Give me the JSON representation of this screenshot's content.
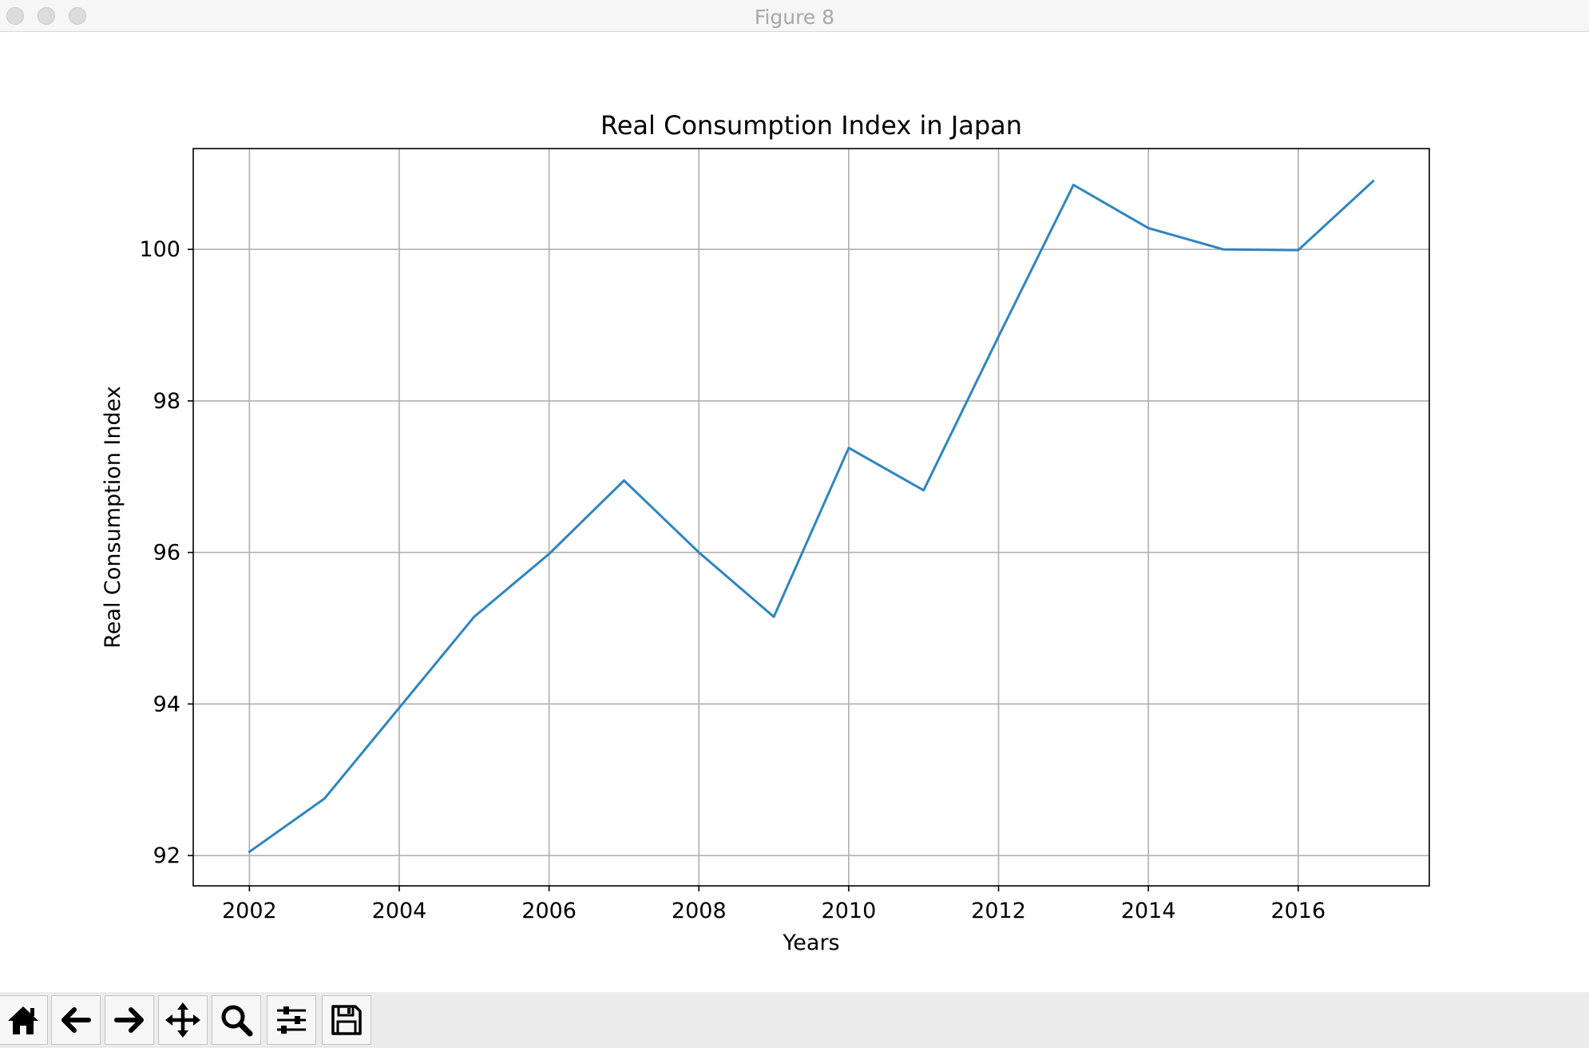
{
  "window": {
    "title": "Figure 8"
  },
  "toolbar": {
    "buttons": [
      {
        "name": "home-button",
        "icon": "home-icon"
      },
      {
        "name": "back-button",
        "icon": "arrow-left-icon"
      },
      {
        "name": "forward-button",
        "icon": "arrow-right-icon"
      },
      {
        "name": "pan-button",
        "icon": "move-icon"
      },
      {
        "name": "zoom-button",
        "icon": "search-icon"
      },
      {
        "name": "configure-subplots-button",
        "icon": "sliders-icon"
      },
      {
        "name": "save-button",
        "icon": "floppy-disk-icon"
      }
    ]
  },
  "chart_data": {
    "type": "line",
    "title": "Real Consumption Index in Japan",
    "xlabel": "Years",
    "ylabel": "Real Consumption Index",
    "x": [
      2002,
      2003,
      2004,
      2005,
      2006,
      2007,
      2008,
      2009,
      2010,
      2011,
      2012,
      2013,
      2014,
      2015,
      2016,
      2017
    ],
    "series": [
      {
        "color": "#2e86c1",
        "values": [
          92.05,
          92.75,
          93.95,
          95.15,
          95.98,
          96.95,
          96.0,
          95.15,
          97.38,
          96.82,
          98.85,
          100.85,
          100.28,
          100.0,
          99.99,
          100.9
        ]
      }
    ],
    "xticks": [
      "2002",
      "2004",
      "2006",
      "2008",
      "2010",
      "2012",
      "2014",
      "2016"
    ],
    "yticks": [
      "92",
      "94",
      "96",
      "98",
      "100"
    ],
    "xlim": [
      2001.25,
      2017.75
    ],
    "ylim": [
      91.6,
      101.33
    ],
    "grid": true
  }
}
